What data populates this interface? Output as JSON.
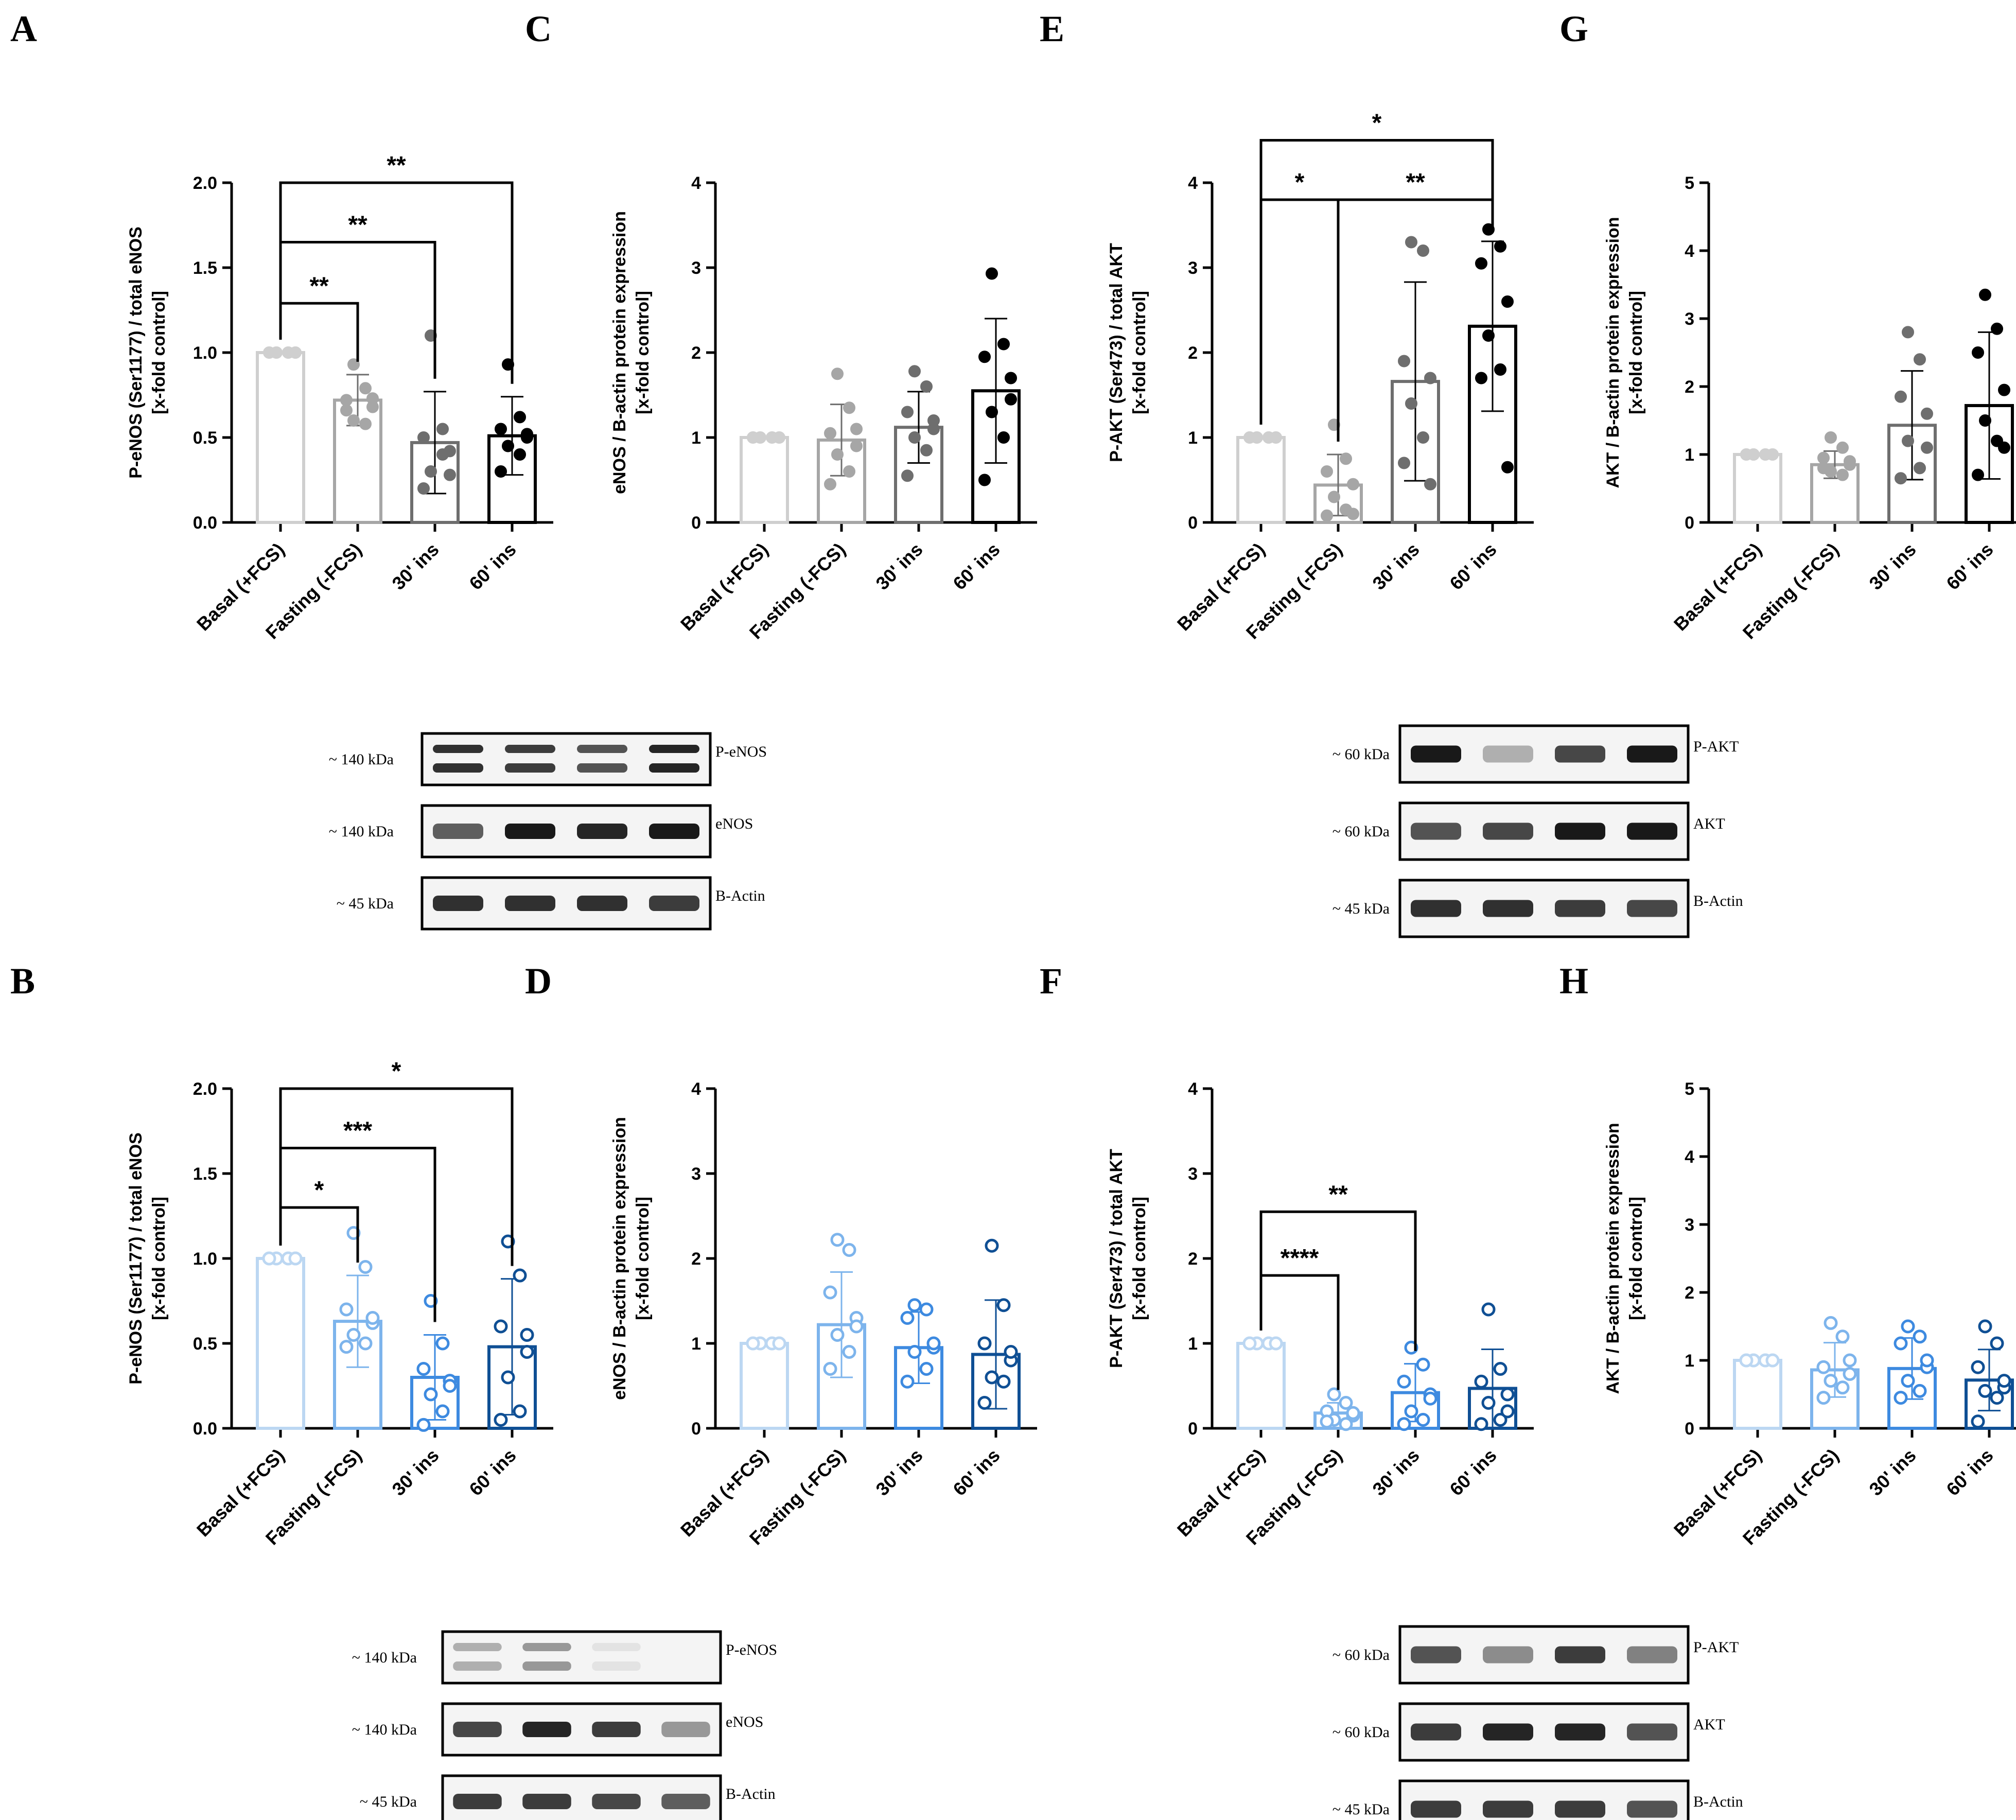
{
  "categories": [
    "Basal (+FCS)",
    "Fasting (-FCS)",
    "30' ins",
    "60' ins"
  ],
  "colors": {
    "gray_series": [
      "#cfcfcf",
      "#a6a6a6",
      "#6e6e6e",
      "#000000"
    ],
    "blue_series": [
      "#bcd7f2",
      "#7db4ec",
      "#3d8ae0",
      "#0f4f94"
    ]
  },
  "chart_data": [
    {
      "panel": "A",
      "type": "bar",
      "title": "",
      "ylabel_lines": [
        "P-eNOS (Ser1177) / total eNOS",
        "[x-fold control]"
      ],
      "ylim": [
        0,
        2.0
      ],
      "yticks": [
        "0.0",
        "0.5",
        "1.0",
        "1.5",
        "2.0"
      ],
      "ytick_values": [
        0,
        0.5,
        1.0,
        1.5,
        2.0
      ],
      "values": [
        1.0,
        0.72,
        0.47,
        0.51
      ],
      "sd": [
        0,
        0.15,
        0.3,
        0.23
      ],
      "points": [
        [
          1,
          1,
          1,
          1,
          1,
          1,
          1,
          1
        ],
        [
          0.93,
          0.79,
          0.72,
          0.68,
          0.6,
          0.58,
          0.66,
          0.73
        ],
        [
          1.1,
          0.55,
          0.5,
          0.42,
          0.3,
          0.4,
          0.2,
          0.28
        ],
        [
          0.93,
          0.62,
          0.55,
          0.5,
          0.45,
          0.4,
          0.3,
          0.52
        ]
      ],
      "fill": "gray",
      "marker": "filled",
      "brackets": [
        {
          "from": 0,
          "to": 1,
          "y": 1.29,
          "label": "**"
        },
        {
          "from": 0,
          "to": 2,
          "y": 1.65,
          "label": "**"
        },
        {
          "from": 0,
          "to": 3,
          "y": 2.0,
          "label": "**"
        }
      ]
    },
    {
      "panel": "C",
      "type": "bar",
      "title": "",
      "ylabel_lines": [
        "eNOS / B-actin protein expression",
        "[x-fold control]"
      ],
      "ylim": [
        0,
        4
      ],
      "yticks": [
        "0",
        "1",
        "2",
        "3",
        "4"
      ],
      "ytick_values": [
        0,
        1,
        2,
        3,
        4
      ],
      "values": [
        1.0,
        0.97,
        1.12,
        1.55
      ],
      "sd": [
        0,
        0.42,
        0.42,
        0.85
      ],
      "points": [
        [
          1,
          1,
          1,
          1,
          1,
          1,
          1,
          1
        ],
        [
          1.75,
          1.35,
          1.05,
          0.9,
          0.8,
          0.6,
          0.45,
          1.1
        ],
        [
          1.78,
          1.6,
          1.3,
          1.1,
          1.0,
          0.85,
          0.55,
          1.2
        ],
        [
          2.93,
          2.1,
          1.95,
          1.7,
          1.3,
          1.0,
          0.5,
          1.45
        ]
      ],
      "fill": "gray",
      "marker": "filled",
      "brackets": []
    },
    {
      "panel": "E",
      "type": "bar",
      "title": "",
      "ylabel_lines": [
        "P-AKT (Ser473) / total AKT",
        "[x-fold control]"
      ],
      "ylim": [
        0,
        4
      ],
      "yticks": [
        "0",
        "1",
        "2",
        "3",
        "4"
      ],
      "ytick_values": [
        0,
        1,
        2,
        3,
        4
      ],
      "values": [
        1.0,
        0.44,
        1.66,
        2.31
      ],
      "sd": [
        0,
        0.36,
        1.17,
        1.0
      ],
      "points": [
        [
          1,
          1,
          1,
          1,
          1,
          1,
          1,
          1
        ],
        [
          1.15,
          0.75,
          0.6,
          0.45,
          0.3,
          0.15,
          0.08,
          0.1
        ],
        [
          3.3,
          3.2,
          1.9,
          1.7,
          1.4,
          1.0,
          0.7,
          0.45
        ],
        [
          3.45,
          3.25,
          3.05,
          2.6,
          2.2,
          1.8,
          1.7,
          0.65
        ]
      ],
      "fill": "gray",
      "marker": "filled",
      "brackets": [
        {
          "from": 0,
          "to": 1,
          "y": 3.8,
          "label": "*"
        },
        {
          "from": 1,
          "to": 3,
          "y": 3.8,
          "label": "**"
        },
        {
          "from": 0,
          "to": 3,
          "y": 4.5,
          "label": "*"
        }
      ]
    },
    {
      "panel": "G",
      "type": "bar",
      "title": "",
      "ylabel_lines": [
        "AKT / B-actin protein expression",
        "[x-fold control]"
      ],
      "ylim": [
        0,
        5
      ],
      "yticks": [
        "0",
        "1",
        "2",
        "3",
        "4",
        "5"
      ],
      "ytick_values": [
        0,
        1,
        2,
        3,
        4,
        5
      ],
      "values": [
        1.0,
        0.85,
        1.43,
        1.72
      ],
      "sd": [
        0,
        0.2,
        0.8,
        1.08
      ],
      "points": [
        [
          1,
          1,
          1,
          1,
          1,
          1,
          1,
          1
        ],
        [
          1.25,
          1.1,
          0.95,
          0.85,
          0.75,
          0.7,
          0.8,
          0.9
        ],
        [
          2.8,
          2.4,
          1.85,
          1.6,
          1.2,
          0.8,
          0.65,
          1.1
        ],
        [
          3.35,
          2.85,
          2.5,
          1.95,
          1.5,
          1.2,
          0.7,
          1.1
        ]
      ],
      "fill": "gray",
      "marker": "filled",
      "brackets": []
    },
    {
      "panel": "B",
      "type": "bar",
      "title": "",
      "ylabel_lines": [
        "P-eNOS (Ser1177) / total eNOS",
        "[x-fold control]"
      ],
      "ylim": [
        0,
        2.0
      ],
      "yticks": [
        "0.0",
        "0.5",
        "1.0",
        "1.5",
        "2.0"
      ],
      "ytick_values": [
        0,
        0.5,
        1.0,
        1.5,
        2.0
      ],
      "values": [
        1.0,
        0.63,
        0.3,
        0.48
      ],
      "sd": [
        0,
        0.27,
        0.25,
        0.4
      ],
      "points": [
        [
          1,
          1,
          1,
          1,
          1,
          1,
          1,
          1
        ],
        [
          1.15,
          0.95,
          0.7,
          0.62,
          0.55,
          0.5,
          0.48,
          0.65
        ],
        [
          0.75,
          0.5,
          0.35,
          0.28,
          0.2,
          0.1,
          0.02,
          0.25
        ],
        [
          1.1,
          0.9,
          0.6,
          0.55,
          0.3,
          0.1,
          0.05,
          0.45
        ]
      ],
      "fill": "blue",
      "marker": "open",
      "brackets": [
        {
          "from": 0,
          "to": 1,
          "y": 1.3,
          "label": "*"
        },
        {
          "from": 0,
          "to": 2,
          "y": 1.65,
          "label": "***"
        },
        {
          "from": 0,
          "to": 3,
          "y": 2.0,
          "label": "*"
        }
      ]
    },
    {
      "panel": "D",
      "type": "bar",
      "title": "",
      "ylabel_lines": [
        "eNOS / B-actin protein expression",
        "[x-fold control]"
      ],
      "ylim": [
        0,
        4
      ],
      "yticks": [
        "0",
        "1",
        "2",
        "3",
        "4"
      ],
      "ytick_values": [
        0,
        1,
        2,
        3,
        4
      ],
      "values": [
        1.0,
        1.22,
        0.95,
        0.87
      ],
      "sd": [
        0,
        0.62,
        0.42,
        0.64
      ],
      "points": [
        [
          1,
          1,
          1,
          1,
          1,
          1,
          1,
          1
        ],
        [
          2.22,
          2.1,
          1.6,
          1.3,
          1.1,
          0.9,
          0.7,
          1.2
        ],
        [
          1.45,
          1.4,
          1.3,
          0.95,
          0.9,
          0.7,
          0.55,
          1.0
        ],
        [
          2.15,
          1.45,
          1.0,
          0.8,
          0.6,
          0.55,
          0.3,
          0.9
        ]
      ],
      "fill": "blue",
      "marker": "open",
      "brackets": []
    },
    {
      "panel": "F",
      "type": "bar",
      "title": "",
      "ylabel_lines": [
        "P-AKT (Ser473) / total AKT",
        "[x-fold control]"
      ],
      "ylim": [
        0,
        4
      ],
      "yticks": [
        "0",
        "1",
        "2",
        "3",
        "4"
      ],
      "ytick_values": [
        0,
        1,
        2,
        3,
        4
      ],
      "values": [
        1.0,
        0.18,
        0.42,
        0.47
      ],
      "sd": [
        0,
        0.12,
        0.34,
        0.46
      ],
      "points": [
        [
          1,
          1,
          1,
          1,
          1,
          1,
          1,
          1
        ],
        [
          0.4,
          0.3,
          0.2,
          0.15,
          0.1,
          0.05,
          0.08,
          0.18
        ],
        [
          0.95,
          0.75,
          0.55,
          0.4,
          0.2,
          0.1,
          0.05,
          0.35
        ],
        [
          1.4,
          0.7,
          0.55,
          0.4,
          0.3,
          0.1,
          0.05,
          0.2
        ]
      ],
      "fill": "blue",
      "marker": "open",
      "brackets": [
        {
          "from": 0,
          "to": 2,
          "y": 2.55,
          "label": "**"
        },
        {
          "from": 0,
          "to": 1,
          "y": 1.8,
          "label": "****"
        }
      ]
    },
    {
      "panel": "H",
      "type": "bar",
      "title": "",
      "ylabel_lines": [
        "AKT / B-actin protein expression",
        "[x-fold control]"
      ],
      "ylim": [
        0,
        5
      ],
      "yticks": [
        "0",
        "1",
        "2",
        "3",
        "4",
        "5"
      ],
      "ytick_values": [
        0,
        1,
        2,
        3,
        4,
        5
      ],
      "values": [
        1.0,
        0.86,
        0.88,
        0.71
      ],
      "sd": [
        0,
        0.4,
        0.45,
        0.45
      ],
      "points": [
        [
          1,
          1,
          1,
          1,
          1,
          1,
          1,
          1
        ],
        [
          1.55,
          1.35,
          0.9,
          0.8,
          0.7,
          0.6,
          0.45,
          1.0
        ],
        [
          1.5,
          1.35,
          1.25,
          0.9,
          0.7,
          0.55,
          0.45,
          1.0
        ],
        [
          1.5,
          1.25,
          0.9,
          0.6,
          0.55,
          0.45,
          0.1,
          0.7
        ]
      ],
      "fill": "blue",
      "marker": "open",
      "brackets": []
    }
  ],
  "blots": [
    {
      "id": "blot-top-enos",
      "rows": [
        {
          "size": "~ 140 kDa",
          "label": "P-eNOS",
          "intensities": [
            0.9,
            0.85,
            0.75,
            0.95
          ],
          "double": true
        },
        {
          "size": "~ 140 kDa",
          "label": "eNOS",
          "intensities": [
            0.7,
            1.0,
            0.95,
            1.0
          ],
          "double": false
        },
        {
          "size": "~ 45 kDa",
          "label": "B-Actin",
          "intensities": [
            0.9,
            0.9,
            0.9,
            0.85
          ],
          "double": false
        }
      ]
    },
    {
      "id": "blot-top-akt",
      "rows": [
        {
          "size": "~ 60 kDa",
          "label": "P-AKT",
          "intensities": [
            1.0,
            0.35,
            0.8,
            1.0
          ],
          "double": false
        },
        {
          "size": "~ 60 kDa",
          "label": "AKT",
          "intensities": [
            0.75,
            0.8,
            1.0,
            1.0
          ],
          "double": false
        },
        {
          "size": "~ 45 kDa",
          "label": "B-Actin",
          "intensities": [
            0.9,
            0.9,
            0.85,
            0.8
          ],
          "double": false
        }
      ]
    },
    {
      "id": "blot-bottom-enos",
      "rows": [
        {
          "size": "~ 140 kDa",
          "label": "P-eNOS",
          "intensities": [
            0.35,
            0.45,
            0.12,
            0.05
          ],
          "double": true
        },
        {
          "size": "~ 140 kDa",
          "label": "eNOS",
          "intensities": [
            0.8,
            0.95,
            0.85,
            0.45
          ],
          "double": false
        },
        {
          "size": "~ 45 kDa",
          "label": "B-Actin",
          "intensities": [
            0.85,
            0.85,
            0.8,
            0.7
          ],
          "double": false
        }
      ]
    },
    {
      "id": "blot-bottom-akt",
      "rows": [
        {
          "size": "~ 60 kDa",
          "label": "P-AKT",
          "intensities": [
            0.75,
            0.5,
            0.85,
            0.55
          ],
          "double": false
        },
        {
          "size": "~ 60 kDa",
          "label": "AKT",
          "intensities": [
            0.85,
            0.95,
            0.95,
            0.75
          ],
          "double": false
        },
        {
          "size": "~ 45 kDa",
          "label": "B-Actin",
          "intensities": [
            0.85,
            0.85,
            0.85,
            0.75
          ],
          "double": false
        }
      ]
    }
  ]
}
